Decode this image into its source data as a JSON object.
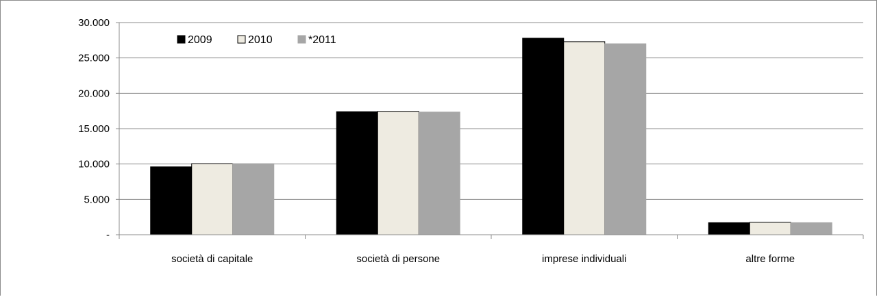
{
  "chart_data": {
    "type": "bar",
    "title": "",
    "xlabel": "",
    "ylabel": "",
    "categories": [
      "società di capitale",
      "società di persone",
      "imprese individuali",
      "altre forme"
    ],
    "series": [
      {
        "name": "2009",
        "values": [
          9600,
          17400,
          27800,
          1700
        ],
        "color": "#000000"
      },
      {
        "name": "2010",
        "values": [
          10050,
          17450,
          27300,
          1750
        ],
        "color": "#eeebe1"
      },
      {
        "name": "*2011",
        "values": [
          10050,
          17350,
          27000,
          1700
        ],
        "color": "#a6a6a6"
      }
    ],
    "ylim": [
      0,
      30000
    ],
    "yticks": [
      0,
      5000,
      10000,
      15000,
      20000,
      25000,
      30000
    ],
    "ytick_labels": [
      "-",
      "5.000",
      "10.000",
      "15.000",
      "20.000",
      "25.000",
      "30.000"
    ],
    "grid": true,
    "legend": "top-left inside"
  }
}
